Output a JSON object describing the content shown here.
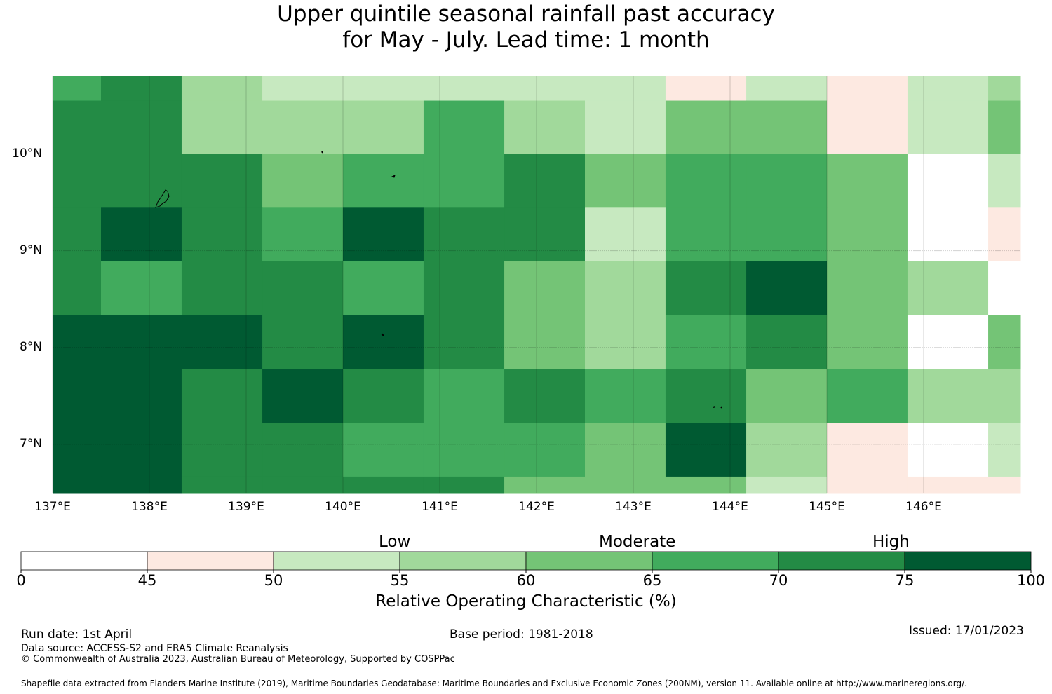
{
  "title": {
    "line1": "Upper quintile seasonal rainfall past accuracy",
    "line2": "for May - July. Lead time: 1 month"
  },
  "map": {
    "lon_range": [
      137,
      147
    ],
    "lat_range": [
      6.5,
      10.8
    ],
    "grid_lons": [
      137.0,
      137.5,
      138.333,
      139.167,
      140.0,
      140.833,
      141.667,
      142.5,
      143.333,
      144.167,
      145.0,
      145.833,
      146.667,
      147.0
    ],
    "grid_lats": [
      10.8,
      10.55,
      10.0,
      9.444,
      8.889,
      8.333,
      7.778,
      7.222,
      6.667,
      6.5
    ],
    "rows": [
      [
        65,
        70,
        55,
        50,
        50,
        50,
        50,
        50,
        45,
        50,
        45,
        50,
        55
      ],
      [
        70,
        70,
        55,
        55,
        55,
        65,
        55,
        50,
        60,
        60,
        45,
        50,
        60
      ],
      [
        70,
        70,
        70,
        60,
        65,
        65,
        70,
        60,
        65,
        65,
        60,
        0,
        50
      ],
      [
        70,
        75,
        70,
        65,
        75,
        70,
        70,
        50,
        65,
        65,
        60,
        0,
        45
      ],
      [
        70,
        65,
        70,
        70,
        65,
        70,
        60,
        55,
        70,
        75,
        60,
        55,
        0
      ],
      [
        75,
        75,
        75,
        70,
        75,
        70,
        60,
        55,
        65,
        70,
        60,
        0,
        60
      ],
      [
        75,
        75,
        70,
        75,
        70,
        65,
        70,
        65,
        70,
        60,
        65,
        55,
        55
      ],
      [
        75,
        75,
        70,
        70,
        65,
        65,
        65,
        60,
        75,
        55,
        45,
        0,
        50
      ],
      [
        75,
        75,
        70,
        70,
        70,
        70,
        60,
        60,
        60,
        50,
        45,
        45,
        45
      ]
    ],
    "lat_ticks": [
      {
        "value": 10,
        "label": "10°N"
      },
      {
        "value": 9,
        "label": "9°N"
      },
      {
        "value": 8,
        "label": "8°N"
      },
      {
        "value": 7,
        "label": "7°N"
      }
    ],
    "lon_ticks": [
      {
        "value": 137,
        "label": "137°E"
      },
      {
        "value": 138,
        "label": "138°E"
      },
      {
        "value": 139,
        "label": "139°E"
      },
      {
        "value": 140,
        "label": "140°E"
      },
      {
        "value": 141,
        "label": "141°E"
      },
      {
        "value": 142,
        "label": "142°E"
      },
      {
        "value": 143,
        "label": "143°E"
      },
      {
        "value": 144,
        "label": "144°E"
      },
      {
        "value": 145,
        "label": "145°E"
      },
      {
        "value": 146,
        "label": "146°E"
      }
    ]
  },
  "colorbar": {
    "bins": [
      {
        "min": 0,
        "max": 45,
        "color": "#ffffff"
      },
      {
        "min": 45,
        "max": 50,
        "color": "#fde9e1"
      },
      {
        "min": 50,
        "max": 55,
        "color": "#c7e9c0"
      },
      {
        "min": 55,
        "max": 60,
        "color": "#a1d99b"
      },
      {
        "min": 60,
        "max": 65,
        "color": "#74c476"
      },
      {
        "min": 65,
        "max": 70,
        "color": "#41ab5d"
      },
      {
        "min": 70,
        "max": 75,
        "color": "#238b45"
      },
      {
        "min": 75,
        "max": 100,
        "color": "#005a32"
      }
    ],
    "ticks": [
      "0",
      "45",
      "50",
      "55",
      "60",
      "65",
      "70",
      "75",
      "100"
    ],
    "categories": {
      "low": "Low",
      "moderate": "Moderate",
      "high": "High"
    },
    "label": "Relative Operating Characteristic (%)"
  },
  "footer": {
    "run_date": "Run date: 1st April",
    "base_period": "Base period: 1981-2018",
    "issued": "Issued: 17/01/2023",
    "data_source": "Data source: ACCESS-S2 and ERA5 Climate Reanalysis",
    "copyright": "© Commonwealth of Australia 2023, Australian Bureau of Meteorology, Supported by COSPPac",
    "shapefile": "Shapefile data extracted from Flanders Marine Institute (2019), Maritime Boundaries Geodatabase: Maritime Boundaries and Exclusive Economic Zones (200NM), version 11. Available online at http://www.marineregions.org/."
  }
}
